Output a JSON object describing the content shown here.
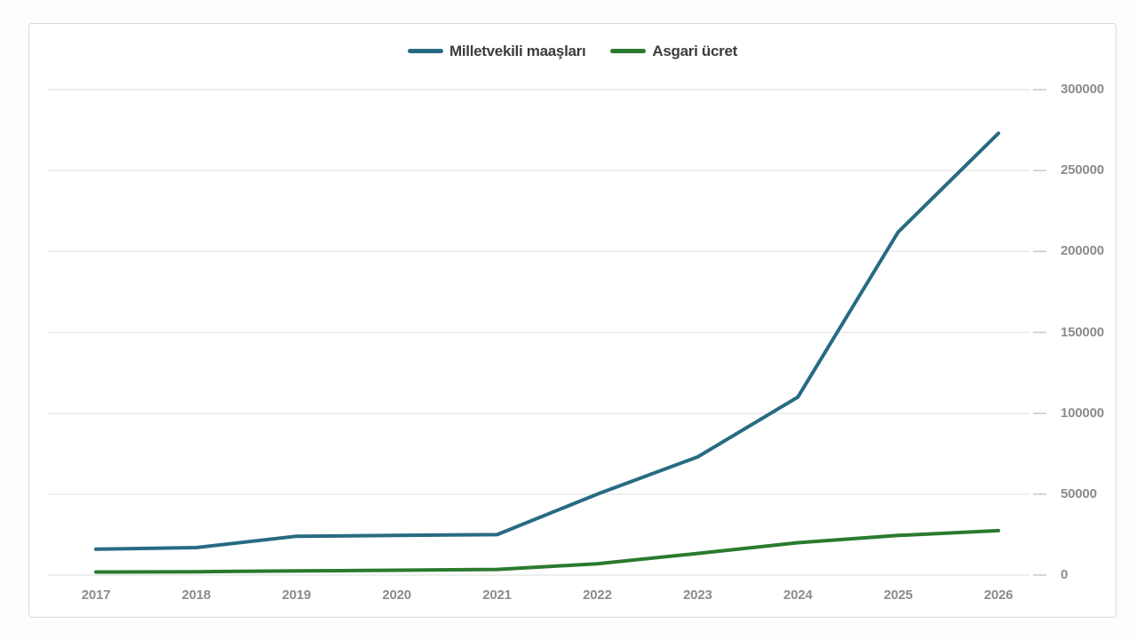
{
  "legend": [
    {
      "label": "Milletvekili maaşları",
      "color": "#276b82"
    },
    {
      "label": "Asgari ücret",
      "color": "#2b7a2e"
    }
  ],
  "colors": {
    "line_blue": "#276b82",
    "line_green": "#2b7a2e",
    "gridline": "#e9e9e9",
    "tick": "#c9c9c9",
    "axis_text": "#8c8c8c",
    "legend_text": "#3c3c3c",
    "card_border": "#d9d9d9",
    "card_bg": "#ffffff",
    "page_bg": "#fdfdfd"
  },
  "chart_data": {
    "type": "line",
    "title": "",
    "xlabel": "",
    "ylabel": "",
    "categories": [
      "2017",
      "2018",
      "2019",
      "2020",
      "2021",
      "2022",
      "2023",
      "2024",
      "2025",
      "2026"
    ],
    "series": [
      {
        "name": "Milletvekili maaşları",
        "color": "#276b82",
        "values": [
          16000,
          17000,
          24000,
          24500,
          25000,
          50000,
          73000,
          110000,
          212000,
          273000
        ]
      },
      {
        "name": "Asgari ücret",
        "color": "#2b7a2e",
        "values": [
          1900,
          2100,
          2600,
          3000,
          3500,
          7000,
          13400,
          20000,
          24500,
          27500
        ]
      }
    ],
    "ylim": [
      0,
      300000
    ],
    "y_ticks": [
      0,
      50000,
      100000,
      150000,
      200000,
      250000,
      300000
    ],
    "y_axis_side": "right",
    "grid": "horizontal",
    "legend_position": "top-center"
  }
}
